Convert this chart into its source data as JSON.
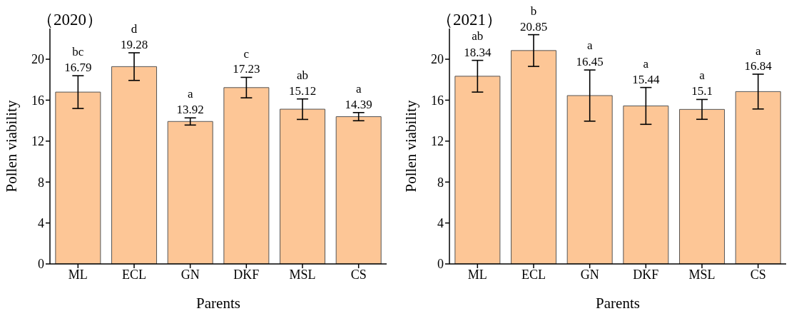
{
  "chart_data": [
    {
      "type": "bar",
      "title": "（2020）",
      "xlabel": "Parents",
      "ylabel": "Pollen viability",
      "categories": [
        "ML",
        "ECL",
        "GN",
        "DKF",
        "MSL",
        "CS"
      ],
      "values": [
        16.79,
        19.28,
        13.92,
        17.23,
        15.12,
        14.39
      ],
      "errors": [
        1.6,
        1.35,
        0.35,
        1.0,
        1.0,
        0.4
      ],
      "color": "#fdc696",
      "ylim": [
        0,
        23
      ],
      "yticks": [
        0,
        4,
        8,
        12,
        16,
        20
      ],
      "grid": false,
      "legend": false,
      "data_labels": true,
      "annotations": [
        {
          "text": "bc",
          "x": "ML",
          "y": 18.4
        },
        {
          "text": "d",
          "x": "ECL",
          "y": 20.6
        },
        {
          "text": "a",
          "x": "GN",
          "y": 14.3
        },
        {
          "text": "c",
          "x": "DKF",
          "y": 18.2
        },
        {
          "text": "ab",
          "x": "MSL",
          "y": 16.1
        },
        {
          "text": "a",
          "x": "CS",
          "y": 14.8
        }
      ]
    },
    {
      "type": "bar",
      "title": "（2021）",
      "xlabel": "Parents",
      "ylabel": "Pollen viability",
      "categories": [
        "ML",
        "ECL",
        "GN",
        "DKF",
        "MSL",
        "CS"
      ],
      "values": [
        18.34,
        20.85,
        16.45,
        15.44,
        15.1,
        16.84
      ],
      "errors": [
        1.55,
        1.55,
        2.5,
        1.8,
        0.97,
        1.7
      ],
      "color": "#fdc696",
      "ylim": [
        0,
        23
      ],
      "yticks": [
        0,
        4,
        8,
        12,
        16,
        20
      ],
      "grid": false,
      "legend": false,
      "data_labels": true,
      "annotations": [
        {
          "text": "ab",
          "x": "ML",
          "y": 19.9
        },
        {
          "text": "b",
          "x": "ECL",
          "y": 22.4
        },
        {
          "text": "a",
          "x": "GN",
          "y": 19.0
        },
        {
          "text": "a",
          "x": "DKF",
          "y": 17.2
        },
        {
          "text": "a",
          "x": "MSL",
          "y": 16.1
        },
        {
          "text": "a",
          "x": "CS",
          "y": 18.5
        }
      ]
    }
  ]
}
